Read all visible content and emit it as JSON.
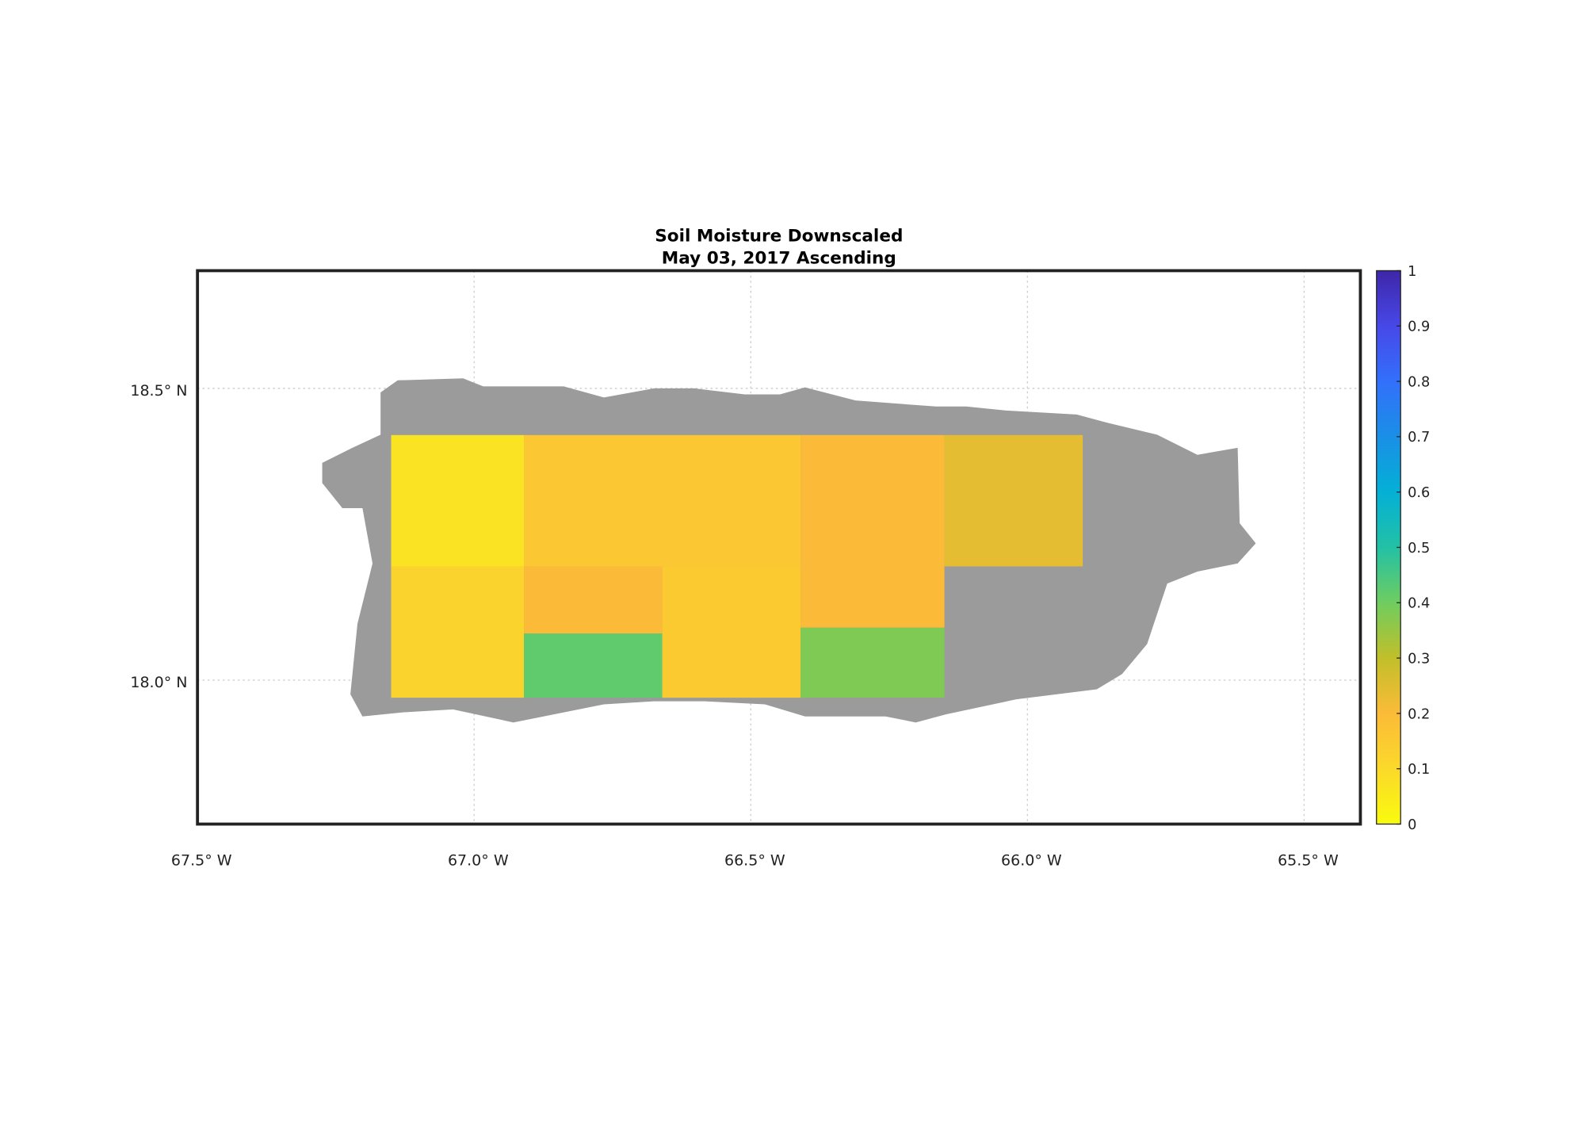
{
  "chart_data": {
    "type": "heatmap",
    "title": "Soil Moisture Downscaled",
    "subtitle": "May 03, 2017 Ascending",
    "xlim": [
      -67.5,
      -65.4
    ],
    "ylim": [
      17.76,
      18.7
    ],
    "grid": true,
    "x_ticks": [
      -67.5,
      -67.0,
      -66.5,
      -66.0,
      -65.5
    ],
    "x_tick_labels": [
      "67.5° W",
      "67.0° W",
      "66.5° W",
      "66.0° W",
      "65.5° W"
    ],
    "y_ticks": [
      18.5,
      18.0
    ],
    "y_tick_labels": [
      "18.5° N",
      "18.0° N"
    ],
    "no_data_color": "#9b9b9b",
    "colorbar": {
      "range": [
        0,
        1
      ],
      "colormap": "parula",
      "ticks": [
        0,
        0.1,
        0.2,
        0.3,
        0.4,
        0.5,
        0.6,
        0.7,
        0.8,
        0.9,
        1
      ],
      "tick_labels": [
        "0",
        "0.1",
        "0.2",
        "0.3",
        "0.4",
        "0.5",
        "0.6",
        "0.7",
        "0.8",
        "0.9",
        "1"
      ],
      "placement": "right"
    },
    "tiles": [
      {
        "lon": [
          -67.15,
          -66.91
        ],
        "lat": [
          18.195,
          18.42
        ],
        "value": 0.07
      },
      {
        "lon": [
          -66.91,
          -66.41
        ],
        "lat": [
          18.195,
          18.42
        ],
        "value": 0.16
      },
      {
        "lon": [
          -66.41,
          -66.15
        ],
        "lat": [
          18.195,
          18.42
        ],
        "value": 0.2
      },
      {
        "lon": [
          -66.15,
          -65.9
        ],
        "lat": [
          18.195,
          18.42
        ],
        "value": 0.24
      },
      {
        "lon": [
          -67.15,
          -66.91
        ],
        "lat": [
          17.97,
          18.195
        ],
        "value": 0.12
      },
      {
        "lon": [
          -66.91,
          -66.66
        ],
        "lat": [
          18.08,
          18.195
        ],
        "value": 0.2
      },
      {
        "lon": [
          -66.91,
          -66.66
        ],
        "lat": [
          17.97,
          18.08
        ],
        "value": 0.42
      },
      {
        "lon": [
          -66.66,
          -66.41
        ],
        "lat": [
          17.97,
          18.195
        ],
        "value": 0.15
      },
      {
        "lon": [
          -66.41,
          -66.15
        ],
        "lat": [
          18.09,
          18.195
        ],
        "value": 0.2
      },
      {
        "lon": [
          -66.41,
          -66.15
        ],
        "lat": [
          17.97,
          18.09
        ],
        "value": 0.38
      }
    ]
  }
}
